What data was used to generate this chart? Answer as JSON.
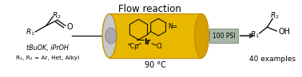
{
  "title": "Flow reaction",
  "title_fontsize": 8.5,
  "bg_color": "#ffffff",
  "cylinder_color": "#E8B800",
  "cylinder_dark": "#C89000",
  "cylinder_right": "#D4A000",
  "temp_label": "90 °C",
  "pressure_label": "100 PSI",
  "pressure_box_color": "#a8b8a8",
  "pressure_box_edge": "#809080",
  "reactant_conditions1": "tBuOK, iPrOH",
  "reactant_conditions2": "R₁, R₂ = Ar, Het, Alkyl",
  "product_label": "40 examples",
  "arrow_color": "#222222",
  "bead_color": "#aaaaaa",
  "bead_edge": "#888888"
}
